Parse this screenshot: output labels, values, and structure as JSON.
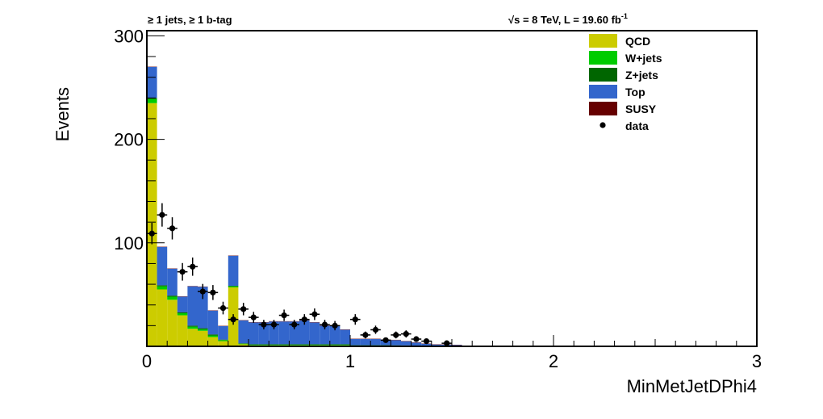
{
  "header": {
    "left_label": "≥ 1 jets, ≥ 1 b-tag",
    "right_label": "√s = 8 TeV, L = 19.60 fb",
    "right_superscript": "-1"
  },
  "chart_data": {
    "type": "bar",
    "stacked": true,
    "xlabel": "MinMetJetDPhi4",
    "ylabel": "Events",
    "xlim": [
      0,
      3
    ],
    "ylim": [
      0,
      305
    ],
    "xticks": [
      "0",
      "1",
      "2",
      "3"
    ],
    "yticks": [
      "100",
      "200",
      "300"
    ],
    "bin_width": 0.05,
    "bin_edges_start": [
      0,
      0.05,
      0.1,
      0.15,
      0.2,
      0.25,
      0.3,
      0.35,
      0.4,
      0.45,
      0.5,
      0.55,
      0.6,
      0.65,
      0.7,
      0.75,
      0.8,
      0.85,
      0.9,
      0.95,
      1.0,
      1.05,
      1.1,
      1.15,
      1.2,
      1.25,
      1.3,
      1.35,
      1.4,
      1.45,
      1.5
    ],
    "series": [
      {
        "name": "QCD",
        "color": "#cccc00",
        "values": [
          235,
          55,
          45,
          30,
          17,
          15,
          9,
          5,
          57,
          2,
          1,
          1,
          1,
          1,
          1,
          1,
          1,
          1,
          1,
          1,
          0.5,
          0.5,
          0.5,
          0.5,
          0.5,
          0.5,
          0.3,
          0.3,
          0,
          0,
          0
        ]
      },
      {
        "name": "W+jets",
        "color": "#00cc00",
        "values": [
          4,
          3,
          3,
          2,
          2,
          1.5,
          1.5,
          1,
          1,
          0.5,
          0.5,
          0.5,
          0.5,
          0.5,
          0.5,
          0.5,
          0.5,
          0.5,
          0.5,
          0.5,
          0.3,
          0.3,
          0.3,
          0.3,
          0.3,
          0.2,
          0.2,
          0.1,
          0.1,
          0.1,
          0
        ]
      },
      {
        "name": "Z+jets",
        "color": "#006600",
        "values": [
          1,
          1,
          1,
          1,
          1,
          1,
          1,
          0.5,
          0.5,
          0.5,
          0.5,
          0.5,
          0.5,
          0.5,
          0.5,
          0.5,
          0.5,
          0.5,
          0.5,
          0.5,
          0.3,
          0.3,
          0.3,
          0.3,
          0.2,
          0.2,
          0.1,
          0.1,
          0.1,
          0,
          0
        ]
      },
      {
        "name": "Top",
        "color": "#3366cc",
        "values": [
          30,
          37,
          26,
          15,
          38,
          40,
          23,
          13,
          29,
          22,
          21,
          21,
          22,
          22,
          22,
          23,
          21,
          18,
          18,
          14,
          6,
          6,
          6,
          5,
          5,
          4,
          3,
          2,
          1.5,
          1.5,
          1.2
        ]
      },
      {
        "name": "SUSY",
        "color": "#660000",
        "values": [
          0.3,
          0.3,
          0.3,
          0.3,
          0.3,
          0.3,
          0.3,
          0.3,
          0.3,
          0.3,
          0.3,
          0.3,
          0.3,
          0.3,
          0.3,
          0.3,
          0.3,
          0.3,
          0.3,
          0.3,
          0.3,
          0.3,
          0.3,
          0.3,
          0.3,
          0.3,
          0.3,
          0.3,
          0.3,
          0.3,
          0.3
        ]
      }
    ],
    "data": {
      "name": "data",
      "x": [
        0.025,
        0.075,
        0.125,
        0.175,
        0.225,
        0.275,
        0.325,
        0.375,
        0.425,
        0.475,
        0.525,
        0.575,
        0.625,
        0.675,
        0.725,
        0.775,
        0.825,
        0.875,
        0.925,
        1.025,
        1.075,
        1.125,
        1.175,
        1.225,
        1.275,
        1.325,
        1.375,
        1.475
      ],
      "y": [
        109,
        127,
        114,
        72,
        77,
        53,
        52,
        37,
        26,
        36,
        28,
        21,
        21,
        30,
        21,
        26,
        31,
        21,
        20,
        26,
        11,
        16,
        6,
        11,
        12,
        7,
        5,
        3
      ],
      "err": [
        10.4,
        11.3,
        10.7,
        8.5,
        8.8,
        7.3,
        7.2,
        6.1,
        5.1,
        6.0,
        5.3,
        4.6,
        4.6,
        5.5,
        4.6,
        5.1,
        5.6,
        4.6,
        4.5,
        5.1,
        3.3,
        4.0,
        2.4,
        3.3,
        3.5,
        2.6,
        2.2,
        1.7
      ]
    },
    "legend": [
      {
        "label": "QCD",
        "color": "#cccc00",
        "kind": "box"
      },
      {
        "label": "W+jets",
        "color": "#00cc00",
        "kind": "box"
      },
      {
        "label": "Z+jets",
        "color": "#006600",
        "kind": "box"
      },
      {
        "label": "Top",
        "color": "#3366cc",
        "kind": "box"
      },
      {
        "label": "SUSY",
        "color": "#660000",
        "kind": "box"
      },
      {
        "label": "data",
        "color": "#000000",
        "kind": "marker"
      }
    ],
    "legend_position": "top-right"
  }
}
